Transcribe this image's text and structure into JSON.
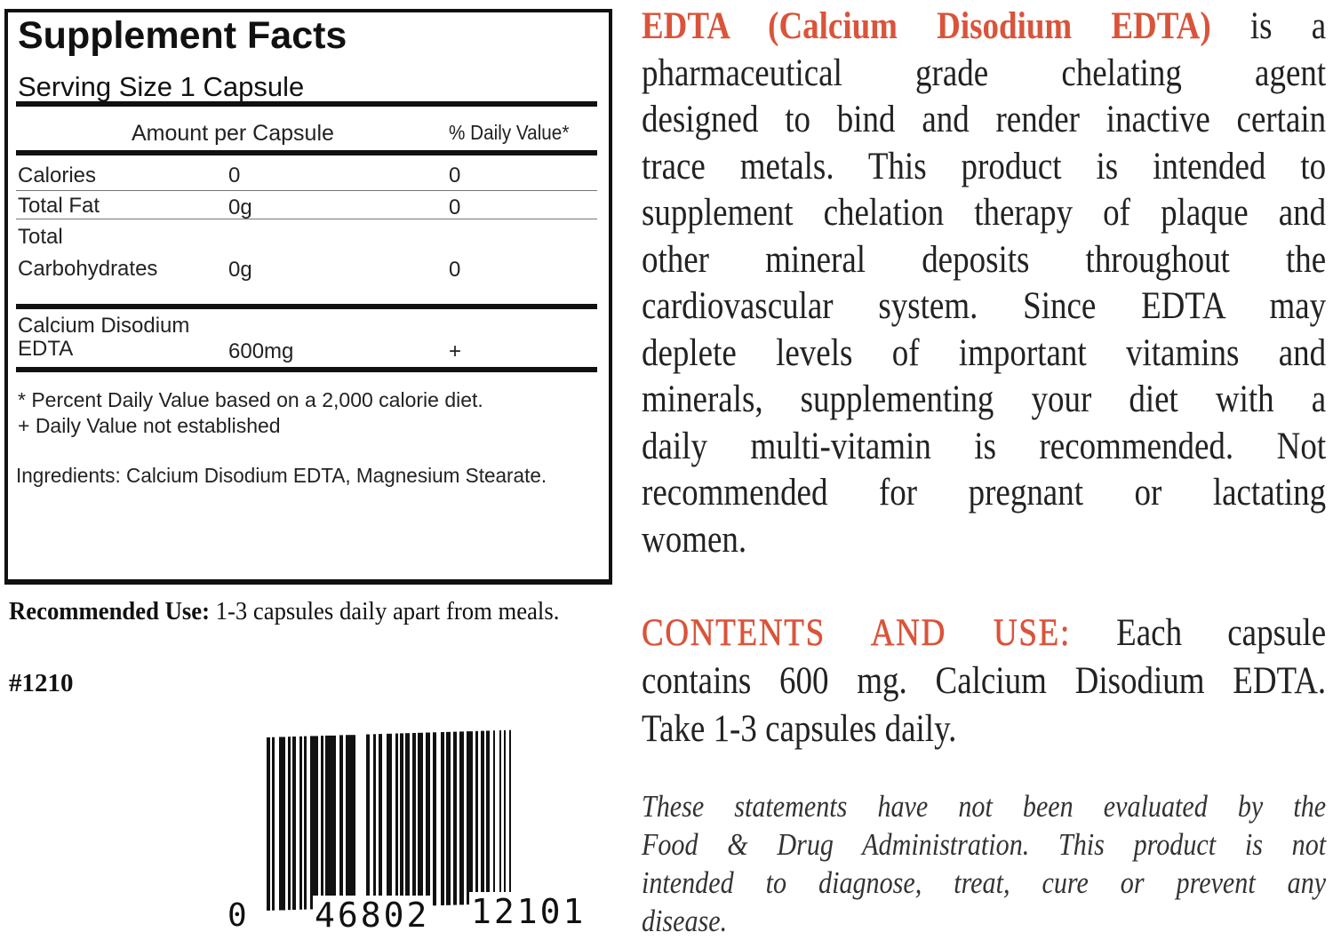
{
  "facts": {
    "title": "Supplement Facts",
    "serving_size": "Serving Size 1 Capsule",
    "col_amount": "Amount per Capsule",
    "col_dv": "% Daily Value*",
    "rows": [
      {
        "name": "Calories",
        "amount": "0",
        "dv": "0"
      },
      {
        "name": "Total Fat",
        "amount": "0g",
        "dv": "0"
      },
      {
        "name_line1": "Total",
        "name_line2": "Carbohydrates",
        "amount": "0g",
        "dv": "0"
      },
      {
        "name_line1": "Calcium Disodium",
        "name_line2": "EDTA",
        "amount": "600mg",
        "dv": "+"
      }
    ],
    "footnote1": "* Percent Daily Value based on a 2,000 calorie diet.",
    "footnote2": "+ Daily Value not established",
    "ingredients": "Ingredients: Calcium Disodium EDTA, Magnesium Stearate."
  },
  "recommended": {
    "label": "Recommended Use:",
    "text": " 1-3 capsules daily apart from meals."
  },
  "product_number": "#1210",
  "barcode": {
    "first": "0",
    "left": "46802",
    "right": "12101"
  },
  "description": {
    "highlight": "EDTA (Calcium Disodium EDTA)",
    "lines": [
      " is a",
      "pharmaceutical grade chelating agent",
      "designed to bind and render inactive certain",
      "trace metals.  This product is intended to",
      "supplement chelation therapy of plaque and",
      "other mineral deposits throughout the",
      "cardiovascular system.  Since EDTA may",
      "deplete levels of important vitamins and",
      "minerals, supplementing your diet with a",
      "daily multi-vitamin is recommended.  Not",
      "recommended for pregnant or lactating",
      "women."
    ]
  },
  "contents": {
    "heading": "CONTENTS AND USE:",
    "lines": [
      " Each capsule",
      "contains 600 mg. Calcium Disodium EDTA.",
      "Take 1-3 capsules daily."
    ]
  },
  "disclaimer": {
    "lines": [
      "These statements have not been evaluated by the",
      "Food & Drug Administration.  This product is not",
      "intended to diagnose, treat, cure or prevent any",
      "disease."
    ]
  },
  "colors": {
    "accent": "#d9543a",
    "text": "#111111"
  }
}
